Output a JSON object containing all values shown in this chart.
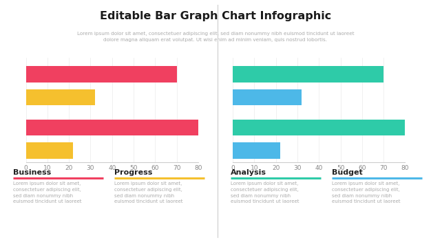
{
  "title": "Editable Bar Graph Chart Infographic",
  "subtitle": "Lorem ipsum dolor sit amet, consectetuer adipiscing elit, sed diam nonummy nibh euismod tincidunt ut laoreet\ndolore magna aliquam erat volutpat. Ut wisi enim ad minim veniam, quis nostrud lobortis.",
  "left_bars": [
    {
      "value": 70,
      "color": "#f04060"
    },
    {
      "value": 32,
      "color": "#f5c02e"
    },
    {
      "value": 80,
      "color": "#f04060"
    },
    {
      "value": 22,
      "color": "#f5c02e"
    }
  ],
  "right_bars": [
    {
      "value": 70,
      "color": "#2ecba8"
    },
    {
      "value": 32,
      "color": "#4db8e8"
    },
    {
      "value": 80,
      "color": "#2ecba8"
    },
    {
      "value": 22,
      "color": "#4db8e8"
    }
  ],
  "xlim": [
    0,
    80
  ],
  "xticks": [
    0,
    10,
    20,
    30,
    40,
    50,
    60,
    70,
    80
  ],
  "bg_color": "#ffffff",
  "footer_items": [
    {
      "label": "Business",
      "color": "#f04060"
    },
    {
      "label": "Progress",
      "color": "#f5c02e"
    },
    {
      "label": "Analysis",
      "color": "#2ecba8"
    },
    {
      "label": "Budget",
      "color": "#4db8e8"
    }
  ],
  "footer_text": "Lorem ipsum dolor sit amet,\nconsectetuer adipiscing elit,\nsed diam nonummy nibh\neuismod tincidunt ut laoreet",
  "divider_color": "#cccccc"
}
